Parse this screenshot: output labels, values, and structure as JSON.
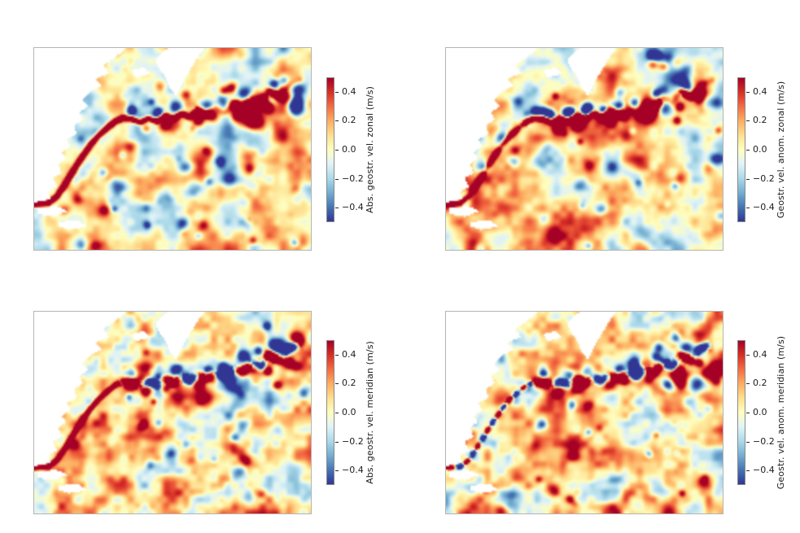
{
  "figure": {
    "background": "#ffffff",
    "panel_border_color": "#b4b4b4",
    "description": "2x2 grid of geostrophic velocity heatmaps over the northwest Atlantic (Gulf Stream region), land masked white, each with a vertical RdYlBu colorbar"
  },
  "colorbar": {
    "ticks": [
      "0.4",
      "0.2",
      "0.0",
      "−0.2",
      "−0.4"
    ],
    "tick_values": [
      0.4,
      0.2,
      0.0,
      -0.2,
      -0.4
    ],
    "vmin": -0.5,
    "vmax": 0.5,
    "units": "m/s",
    "colormap_name": "RdYlBu_r",
    "colormap_stops": [
      "#313695",
      "#4575b4",
      "#74add1",
      "#abd9e9",
      "#e0f3f8",
      "#ffffbf",
      "#fee090",
      "#fdae61",
      "#f46d43",
      "#d73027",
      "#a50026"
    ]
  },
  "panels": [
    {
      "id": "abs-geostr-vel-zonal",
      "colorbar_label": "Abs. geostr. vel. zonal (m/s)",
      "component": "zonal",
      "anomaly": false,
      "seed": 101
    },
    {
      "id": "geostr-vel-anom-zonal",
      "colorbar_label": "Geostr. vel. anom. zonal (m/s)",
      "component": "zonal",
      "anomaly": true,
      "seed": 202
    },
    {
      "id": "abs-geostr-vel-meridian",
      "colorbar_label": "Abs. geostr. vel. meridian (m/s)",
      "component": "merid",
      "anomaly": false,
      "seed": 303
    },
    {
      "id": "geostr-vel-anom-meridian",
      "colorbar_label": "Geostr. vel. anom. meridian (m/s)",
      "component": "merid",
      "anomaly": true,
      "seed": 404
    }
  ],
  "chart_data": [
    {
      "type": "heatmap",
      "panel": "top-left",
      "colorbar_label": "Abs. geostr. vel. zonal (m/s)",
      "units": "m/s",
      "colormap": "RdYlBu_r",
      "value_range": [
        -0.5,
        0.5
      ],
      "colorbar_ticks": [
        0.4,
        0.2,
        0.0,
        -0.2,
        -0.4
      ],
      "legend_position": "right",
      "description": "Absolute geostrophic zonal velocity; continuous dark-red eastward Gulf Stream jet hugging the US coast then meandering east near 1/3 panel height, dark-blue recirculation pockets south of the jet, yellow near-zero background with red/blue eddies, land masked white"
    },
    {
      "type": "heatmap",
      "panel": "top-right",
      "colorbar_label": "Geostr. vel. anom. zonal (m/s)",
      "units": "m/s",
      "colormap": "RdYlBu_r",
      "value_range": [
        -0.5,
        0.5
      ],
      "colorbar_ticks": [
        0.4,
        0.2,
        0.0,
        -0.2,
        -0.4
      ],
      "legend_position": "right",
      "description": "Zonal geostrophic velocity anomaly; jet band broken with strong paired red/blue bands along the meander path, coastal segment weaker, eddy-rich upper-right region"
    },
    {
      "type": "heatmap",
      "panel": "bottom-left",
      "colorbar_label": "Abs. geostr. vel. meridian (m/s)",
      "units": "m/s",
      "colormap": "RdYlBu_r",
      "value_range": [
        -0.5,
        0.5
      ],
      "colorbar_ticks": [
        0.4,
        0.2,
        0.0,
        -0.2,
        -0.4
      ],
      "legend_position": "right",
      "description": "Absolute meridional velocity; narrow solid red ribbon along the northeastward coastal jet, alternating red/blue meander beads further east, fine-grained eddy background"
    },
    {
      "type": "heatmap",
      "panel": "bottom-right",
      "colorbar_label": "Geostr. vel. anom. meridian (m/s)",
      "units": "m/s",
      "colormap": "RdYlBu_r",
      "value_range": [
        -0.5,
        0.5
      ],
      "colorbar_ticks": [
        0.4,
        0.2,
        0.0,
        -0.2,
        -0.4
      ],
      "legend_position": "right",
      "description": "Meridional velocity anomaly; coastal ribbon broken into alternating small red/blue patches, alternating meander beads east of the coast, fine-grained eddy background"
    }
  ],
  "render": {
    "land_polygons": [
      [
        [
          0,
          0
        ],
        [
          0.33,
          0
        ],
        [
          0.3,
          0.04
        ],
        [
          0.25,
          0.085
        ],
        [
          0.27,
          0.125
        ],
        [
          0.22,
          0.155
        ],
        [
          0.245,
          0.185
        ],
        [
          0.205,
          0.215
        ],
        [
          0.175,
          0.255
        ],
        [
          0.195,
          0.29
        ],
        [
          0.162,
          0.32
        ],
        [
          0.178,
          0.355
        ],
        [
          0.143,
          0.385
        ],
        [
          0.155,
          0.425
        ],
        [
          0.118,
          0.452
        ],
        [
          0.133,
          0.49
        ],
        [
          0.1,
          0.515
        ],
        [
          0.115,
          0.55
        ],
        [
          0.085,
          0.575
        ],
        [
          0.1,
          0.618
        ],
        [
          0.068,
          0.645
        ],
        [
          0.083,
          0.688
        ],
        [
          0.05,
          0.71
        ],
        [
          0.06,
          0.748
        ],
        [
          0.025,
          0.758
        ],
        [
          0,
          0.765
        ]
      ],
      [
        [
          0.44,
          0.05
        ],
        [
          0.468,
          0.012
        ],
        [
          0.49,
          0
        ],
        [
          0.615,
          0
        ],
        [
          0.585,
          0.06
        ],
        [
          0.558,
          0.12
        ],
        [
          0.533,
          0.185
        ],
        [
          0.513,
          0.238
        ],
        [
          0.49,
          0.198
        ],
        [
          0.468,
          0.13
        ],
        [
          0.445,
          0.092
        ]
      ],
      [
        [
          0.35,
          0.112
        ],
        [
          0.4,
          0.096
        ],
        [
          0.418,
          0.128
        ],
        [
          0.368,
          0.146
        ]
      ],
      [
        [
          0.012,
          0.793
        ],
        [
          0.078,
          0.783
        ],
        [
          0.125,
          0.808
        ],
        [
          0.068,
          0.835
        ],
        [
          0.015,
          0.824
        ]
      ],
      [
        [
          0.092,
          0.862
        ],
        [
          0.158,
          0.852
        ],
        [
          0.19,
          0.884
        ],
        [
          0.128,
          0.9
        ],
        [
          0.088,
          0.884
        ]
      ]
    ],
    "jet_path": [
      [
        0.0,
        0.775
      ],
      [
        0.05,
        0.77
      ],
      [
        0.082,
        0.735
      ],
      [
        0.105,
        0.69
      ],
      [
        0.128,
        0.64
      ],
      [
        0.152,
        0.585
      ],
      [
        0.178,
        0.53
      ],
      [
        0.205,
        0.478
      ],
      [
        0.232,
        0.435
      ],
      [
        0.262,
        0.398
      ],
      [
        0.292,
        0.365
      ],
      [
        0.32,
        0.348
      ],
      [
        0.352,
        0.352
      ],
      [
        0.382,
        0.368
      ],
      [
        0.412,
        0.35
      ],
      [
        0.442,
        0.362
      ],
      [
        0.472,
        0.335
      ],
      [
        0.502,
        0.352
      ],
      [
        0.532,
        0.325
      ],
      [
        0.562,
        0.342
      ],
      [
        0.592,
        0.31
      ],
      [
        0.622,
        0.33
      ],
      [
        0.655,
        0.298
      ],
      [
        0.688,
        0.32
      ],
      [
        0.72,
        0.282
      ],
      [
        0.752,
        0.3
      ],
      [
        0.785,
        0.248
      ],
      [
        0.818,
        0.272
      ],
      [
        0.85,
        0.215
      ],
      [
        0.885,
        0.24
      ],
      [
        0.92,
        0.185
      ],
      [
        0.96,
        0.16
      ]
    ]
  }
}
